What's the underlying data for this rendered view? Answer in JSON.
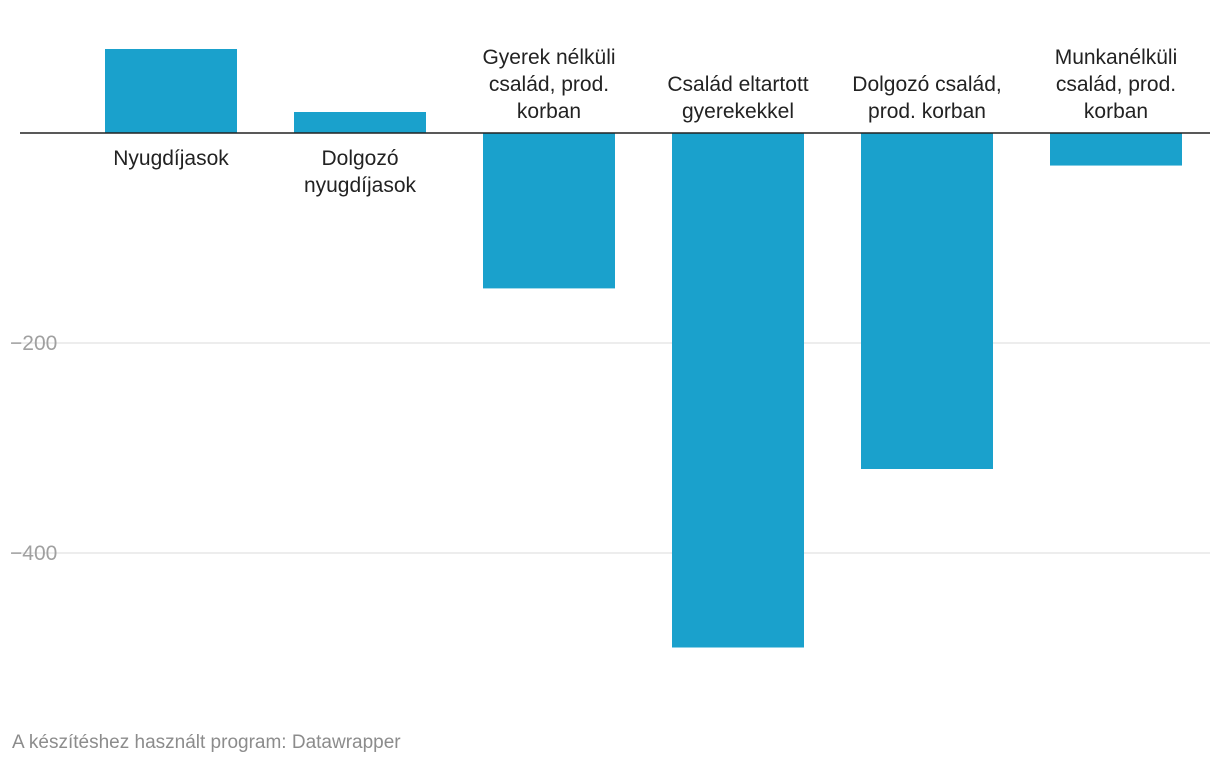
{
  "chart_data": {
    "type": "bar",
    "title": "",
    "xlabel": "",
    "ylabel": "",
    "categories": [
      [
        "Nyugdíjasok"
      ],
      [
        "Dolgozó",
        "nyugdíjasok"
      ],
      [
        "Gyerek nélküli",
        "család, prod.",
        "korban"
      ],
      [
        "Család eltartott",
        "gyerekekkel"
      ],
      [
        "Dolgozó család,",
        "prod. korban"
      ],
      [
        "Munkanélküli",
        "család, prod.",
        "korban"
      ]
    ],
    "values": [
      80,
      20,
      -148,
      -490,
      -320,
      -31
    ],
    "ylim": [
      -490,
      80
    ],
    "yticks": [
      {
        "value": -200,
        "label": "−200"
      },
      {
        "value": -400,
        "label": "−400"
      }
    ],
    "grid": true,
    "colors": {
      "bar": "#1aa1cc",
      "zero_line": "#222222",
      "grid": "#e2e2e2"
    }
  },
  "footer": {
    "credit": "A készítéshez használt program: Datawrapper"
  }
}
